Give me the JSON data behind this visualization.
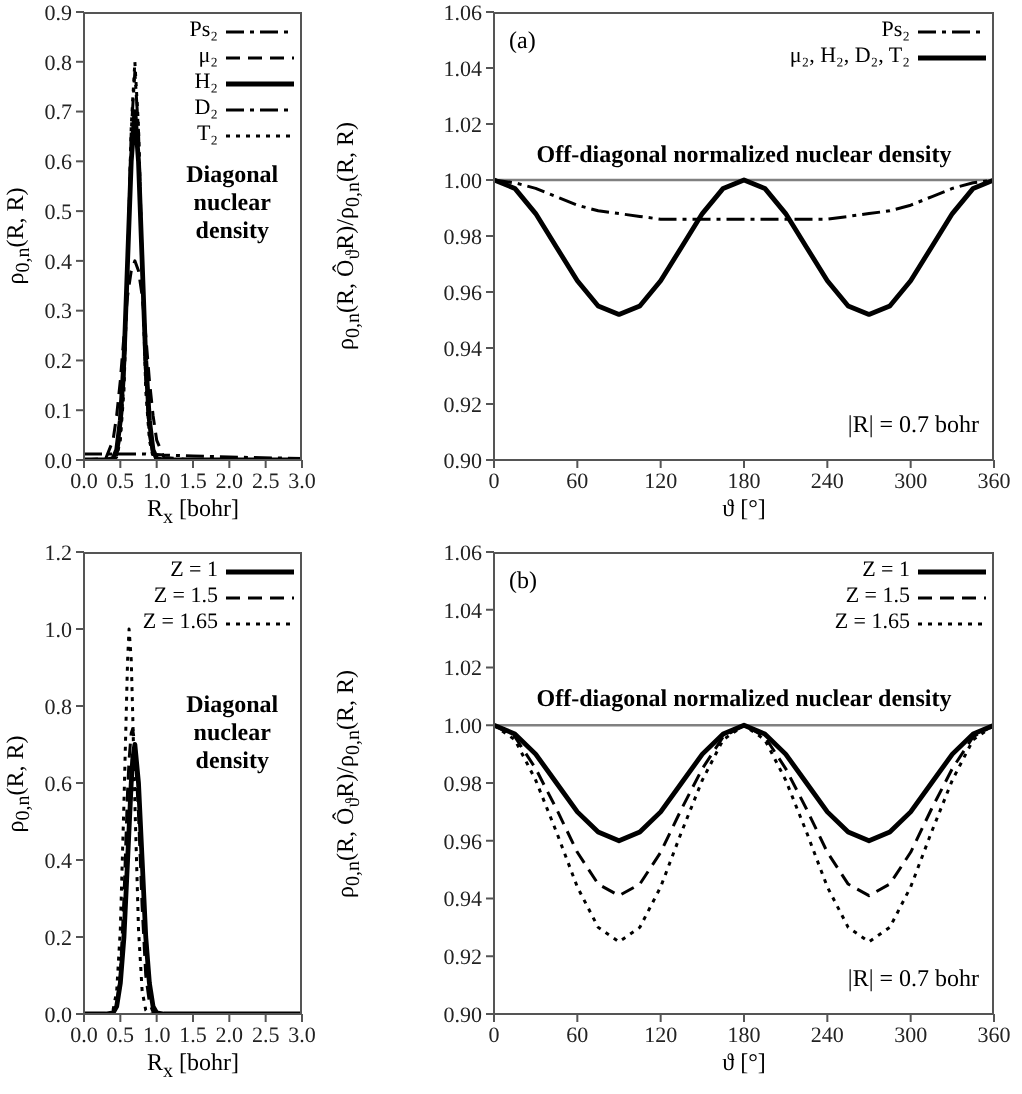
{
  "chart_data": [
    {
      "type": "line",
      "xlabel": "R$_{x}$ [bohr]",
      "ylabel": "ρ$_{0,n}$(R, R)",
      "annotations": [
        "Diagonal nuclear density"
      ],
      "legend": "top right",
      "grid": false,
      "x": [
        0,
        0.3,
        0.4,
        0.45,
        0.5,
        0.55,
        0.6,
        0.65,
        0.7,
        0.75,
        0.8,
        0.85,
        0.9,
        0.95,
        1.0,
        1.1,
        1.5,
        2,
        3
      ],
      "xlim": [
        0,
        3
      ],
      "xticks": [
        {
          "value": 0,
          "label": "0.0"
        },
        {
          "value": 0.5,
          "label": "0.5"
        },
        {
          "value": 1,
          "label": "1.0"
        },
        {
          "value": 1.5,
          "label": "1.5"
        },
        {
          "value": 2,
          "label": "2.0"
        },
        {
          "value": 2.5,
          "label": "2.5"
        },
        {
          "value": 3,
          "label": "3.0"
        }
      ],
      "ylim": [
        0,
        0.9
      ],
      "yticks": [
        {
          "value": 0,
          "label": "0.0"
        },
        0.1,
        0.2,
        0.3,
        0.4,
        0.5,
        0.6,
        0.7,
        0.8,
        0.9
      ],
      "series": [
        {
          "name": "Ps₂",
          "color": "#000000",
          "line_style": "dashdot",
          "values": [
            0.012,
            0.012,
            0.012,
            0.012,
            0.012,
            0.012,
            0.012,
            0.012,
            0.012,
            0.012,
            0.012,
            0.012,
            0.011,
            0.011,
            0.011,
            0.01,
            0.008,
            0.006,
            0.003
          ]
        },
        {
          "name": "μ₂",
          "color": "#000000",
          "line_style": "dashed",
          "values": [
            0,
            0.003,
            0.04,
            0.09,
            0.16,
            0.25,
            0.33,
            0.38,
            0.4,
            0.38,
            0.33,
            0.25,
            0.16,
            0.09,
            0.04,
            0.005,
            0,
            0,
            0
          ]
        },
        {
          "name": "H₂",
          "color": "#000000",
          "line_style": "solid",
          "values": [
            0,
            0,
            0.003,
            0.02,
            0.08,
            0.2,
            0.4,
            0.6,
            0.7,
            0.6,
            0.4,
            0.2,
            0.08,
            0.02,
            0.003,
            0,
            0,
            0,
            0
          ]
        },
        {
          "name": "D₂",
          "color": "#000000",
          "line_style": "dashdot",
          "values": [
            0,
            0,
            0.001,
            0.01,
            0.05,
            0.16,
            0.4,
            0.66,
            0.78,
            0.66,
            0.4,
            0.16,
            0.05,
            0.01,
            0.001,
            0,
            0,
            0,
            0
          ]
        },
        {
          "name": "T₂",
          "color": "#000000",
          "line_style": "dotted",
          "values": [
            0,
            0,
            0,
            0.006,
            0.04,
            0.14,
            0.39,
            0.67,
            0.8,
            0.67,
            0.39,
            0.14,
            0.04,
            0.006,
            0,
            0,
            0,
            0,
            0
          ]
        }
      ]
    },
    {
      "type": "line",
      "xlabel": "ϑ [°]",
      "ylabel": "ρ$_{0,n}$(R, Ô$_{ϑ}$R)/ρ$_{0,n}$(R, R)",
      "annotations": [
        "(a)",
        "Off-diagonal normalized nuclear density",
        "|R| = 0.7 bohr"
      ],
      "legend": "top right",
      "grid": false,
      "x": [
        0,
        15,
        30,
        45,
        60,
        75,
        90,
        105,
        120,
        135,
        150,
        165,
        180,
        195,
        210,
        225,
        240,
        255,
        270,
        285,
        300,
        315,
        330,
        345,
        360
      ],
      "xlim": [
        0,
        360
      ],
      "xticks": [
        0,
        60,
        120,
        180,
        240,
        300,
        360
      ],
      "ylim": [
        0.9,
        1.06
      ],
      "yticks": [
        {
          "value": 0.9,
          "label": "0.90"
        },
        0.92,
        0.94,
        0.96,
        0.98,
        {
          "value": 1,
          "label": "1.00"
        },
        1.02,
        1.04,
        1.06
      ],
      "ref_lines": [
        {
          "axis": "y",
          "value": 1,
          "color": "#808080"
        }
      ],
      "series": [
        {
          "name": "Ps₂",
          "color": "#000000",
          "line_style": "dashdot",
          "values": [
            1,
            0.999,
            0.997,
            0.994,
            0.991,
            0.989,
            0.988,
            0.987,
            0.986,
            0.986,
            0.986,
            0.986,
            0.986,
            0.986,
            0.986,
            0.986,
            0.986,
            0.987,
            0.988,
            0.989,
            0.991,
            0.994,
            0.997,
            0.999,
            1
          ]
        },
        {
          "name": "μ₂, H₂, D₂, T₂",
          "color": "#000000",
          "line_style": "solid",
          "values": [
            1,
            0.997,
            0.988,
            0.976,
            0.964,
            0.955,
            0.952,
            0.955,
            0.964,
            0.976,
            0.988,
            0.997,
            1,
            0.997,
            0.988,
            0.976,
            0.964,
            0.955,
            0.952,
            0.955,
            0.964,
            0.976,
            0.988,
            0.997,
            1
          ]
        }
      ]
    },
    {
      "type": "line",
      "xlabel": "R$_{x}$ [bohr]",
      "ylabel": "ρ$_{0,n}$(R, R)",
      "annotations": [
        "Diagonal nuclear density"
      ],
      "legend": "top right",
      "grid": false,
      "x": [
        0,
        0.3,
        0.4,
        0.45,
        0.5,
        0.55,
        0.6,
        0.62,
        0.65,
        0.67,
        0.7,
        0.75,
        0.8,
        0.85,
        0.9,
        0.95,
        1.0,
        1.1,
        1.5,
        2,
        3
      ],
      "xlim": [
        0,
        3
      ],
      "xticks": [
        {
          "value": 0,
          "label": "0.0"
        },
        {
          "value": 0.5,
          "label": "0.5"
        },
        {
          "value": 1,
          "label": "1.0"
        },
        {
          "value": 1.5,
          "label": "1.5"
        },
        {
          "value": 2,
          "label": "2.0"
        },
        {
          "value": 2.5,
          "label": "2.5"
        },
        {
          "value": 3,
          "label": "3.0"
        }
      ],
      "ylim": [
        0,
        1.2
      ],
      "yticks": [
        {
          "value": 0,
          "label": "0.0"
        },
        0.2,
        0.4,
        0.6,
        0.8,
        {
          "value": 1,
          "label": "1.0"
        },
        1.2
      ],
      "series": [
        {
          "name": "Z = 1",
          "color": "#000000",
          "line_style": "solid",
          "values": [
            0,
            0,
            0.003,
            0.02,
            0.08,
            0.2,
            0.4,
            0.48,
            0.6,
            0.66,
            0.7,
            0.6,
            0.4,
            0.2,
            0.08,
            0.02,
            0.003,
            0,
            0,
            0,
            0
          ]
        },
        {
          "name": "Z = 1.5",
          "color": "#000000",
          "line_style": "dashed",
          "values": [
            0,
            0,
            0.002,
            0.02,
            0.1,
            0.3,
            0.58,
            0.66,
            0.73,
            0.74,
            0.7,
            0.52,
            0.28,
            0.1,
            0.03,
            0.005,
            0,
            0,
            0,
            0,
            0
          ]
        },
        {
          "name": "Z = 1.65",
          "color": "#000000",
          "line_style": "dotted",
          "values": [
            0,
            0,
            0.01,
            0.06,
            0.22,
            0.55,
            0.92,
            1.0,
            0.92,
            0.78,
            0.55,
            0.22,
            0.06,
            0.01,
            0,
            0,
            0,
            0,
            0,
            0,
            0
          ]
        }
      ]
    },
    {
      "type": "line",
      "xlabel": "ϑ [°]",
      "ylabel": "ρ$_{0,n}$(R, Ô$_{ϑ}$R)/ρ$_{0,n}$(R, R)",
      "annotations": [
        "(b)",
        "Off-diagonal normalized nuclear density",
        "|R| = 0.7 bohr"
      ],
      "legend": "top right",
      "grid": false,
      "x": [
        0,
        15,
        30,
        45,
        60,
        75,
        90,
        105,
        120,
        135,
        150,
        165,
        180,
        195,
        210,
        225,
        240,
        255,
        270,
        285,
        300,
        315,
        330,
        345,
        360
      ],
      "xlim": [
        0,
        360
      ],
      "xticks": [
        0,
        60,
        120,
        180,
        240,
        300,
        360
      ],
      "ylim": [
        0.9,
        1.06
      ],
      "yticks": [
        {
          "value": 0.9,
          "label": "0.90"
        },
        0.92,
        0.94,
        0.96,
        0.98,
        {
          "value": 1,
          "label": "1.00"
        },
        1.02,
        1.04,
        1.06
      ],
      "ref_lines": [
        {
          "axis": "y",
          "value": 1,
          "color": "#808080"
        }
      ],
      "series": [
        {
          "name": "Z = 1",
          "color": "#000000",
          "line_style": "solid",
          "values": [
            1,
            0.997,
            0.99,
            0.98,
            0.97,
            0.963,
            0.96,
            0.963,
            0.97,
            0.98,
            0.99,
            0.997,
            1,
            0.997,
            0.99,
            0.98,
            0.97,
            0.963,
            0.96,
            0.963,
            0.97,
            0.98,
            0.99,
            0.997,
            1
          ]
        },
        {
          "name": "Z = 1.5",
          "color": "#000000",
          "line_style": "dashed",
          "values": [
            1,
            0.996,
            0.985,
            0.971,
            0.956,
            0.945,
            0.941,
            0.945,
            0.956,
            0.971,
            0.985,
            0.996,
            1,
            0.996,
            0.985,
            0.971,
            0.956,
            0.945,
            0.941,
            0.945,
            0.956,
            0.971,
            0.985,
            0.996,
            1
          ]
        },
        {
          "name": "Z = 1.65",
          "color": "#000000",
          "line_style": "dotted",
          "values": [
            1,
            0.995,
            0.981,
            0.963,
            0.944,
            0.93,
            0.925,
            0.93,
            0.944,
            0.963,
            0.981,
            0.995,
            1,
            0.995,
            0.981,
            0.963,
            0.944,
            0.93,
            0.925,
            0.93,
            0.944,
            0.963,
            0.981,
            0.995,
            1
          ]
        }
      ]
    }
  ]
}
